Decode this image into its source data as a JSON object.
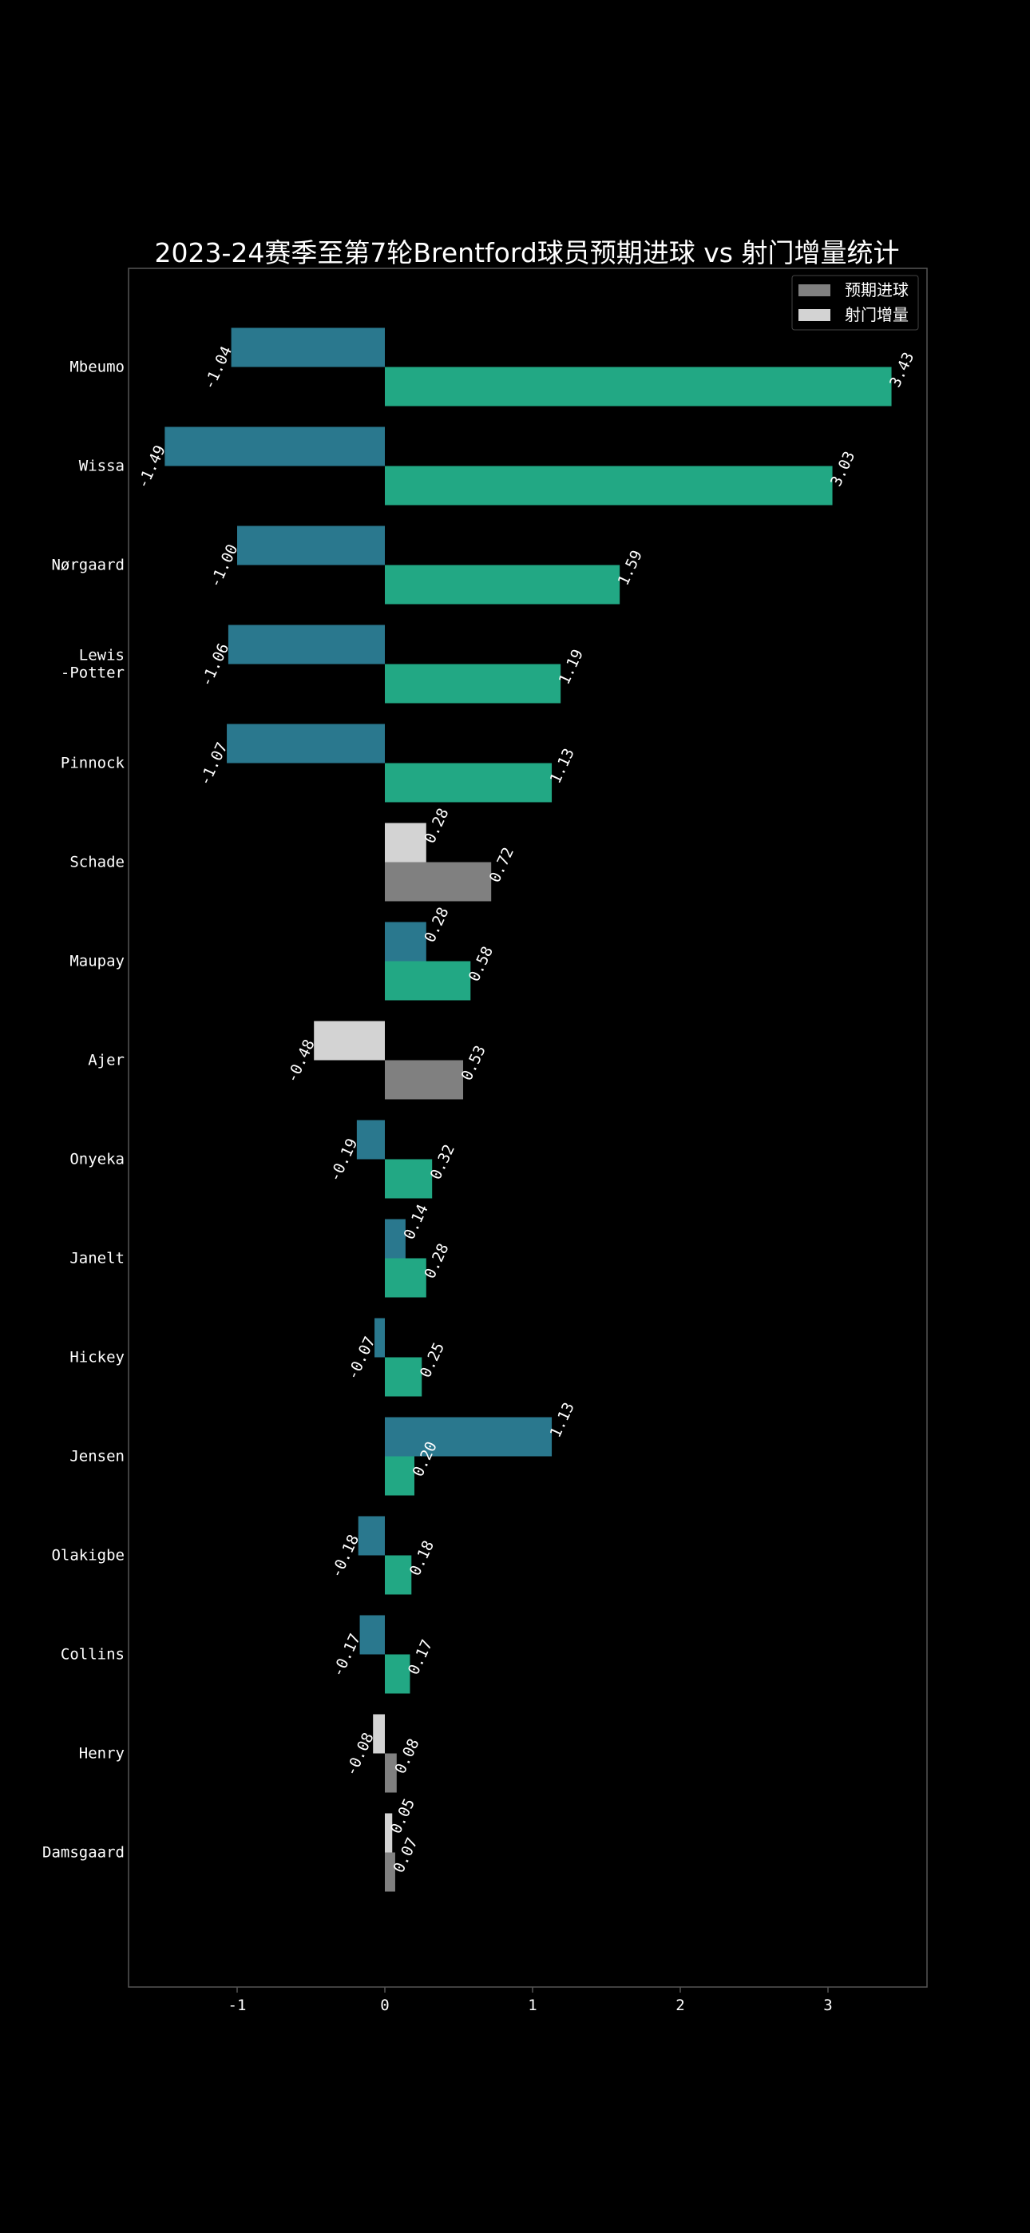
{
  "chart_data": {
    "type": "bar",
    "orientation": "horizontal",
    "title": "2023-24赛季至第7轮Brentford球员预期进球 vs 射门增量统计",
    "xlabel": "",
    "ylabel": "",
    "xlim": [
      -1.7,
      3.7
    ],
    "xticks": [
      -1,
      0,
      1,
      2,
      3
    ],
    "grid": false,
    "legend_position": "top-right",
    "legend": [
      {
        "label": "预期进球",
        "color": "#808080"
      },
      {
        "label": "射门增量",
        "color": "#d3d3d3"
      }
    ],
    "categories": [
      "Mbeumo",
      "Wissa",
      "Nørgaard",
      "Lewis\n-Potter",
      "Pinnock",
      "Schade",
      "Maupay",
      "Ajer",
      "Onyeka",
      "Janelt",
      "Hickey",
      "Jensen",
      "Olakigbe",
      "Collins",
      "Henry",
      "Damsgaard"
    ],
    "series": [
      {
        "name": "射门增量",
        "values": [
          -1.04,
          -1.49,
          -1.0,
          -1.06,
          -1.07,
          0.28,
          0.28,
          -0.48,
          -0.19,
          0.14,
          -0.07,
          1.13,
          -0.18,
          -0.17,
          -0.08,
          0.05
        ],
        "labels": [
          "-1.04",
          "-1.49",
          "-1.00",
          "-1.06",
          "-1.07",
          "0.28",
          "0.28",
          "-0.48",
          "-0.19",
          "0.14",
          "-0.07",
          "1.13",
          "-0.18",
          "-0.17",
          "-0.08",
          "0.05"
        ],
        "colors": [
          "#2a788e",
          "#2a788e",
          "#2a788e",
          "#2a788e",
          "#2a788e",
          "#d3d3d3",
          "#2a788e",
          "#d3d3d3",
          "#2a788e",
          "#2a788e",
          "#2a788e",
          "#2a788e",
          "#2a788e",
          "#2a788e",
          "#d3d3d3",
          "#d3d3d3"
        ]
      },
      {
        "name": "预期进球",
        "values": [
          3.43,
          3.03,
          1.59,
          1.19,
          1.13,
          0.72,
          0.58,
          0.53,
          0.32,
          0.28,
          0.25,
          0.2,
          0.18,
          0.17,
          0.08,
          0.07
        ],
        "labels": [
          "3.43",
          "3.03",
          "1.59",
          "1.19",
          "1.13",
          "0.72",
          "0.58",
          "0.53",
          "0.32",
          "0.28",
          "0.25",
          "0.20",
          "0.18",
          "0.17",
          "0.08",
          "0.07"
        ],
        "colors": [
          "#22a884",
          "#22a884",
          "#22a884",
          "#22a884",
          "#22a884",
          "#808080",
          "#22a884",
          "#808080",
          "#22a884",
          "#22a884",
          "#22a884",
          "#22a884",
          "#22a884",
          "#22a884",
          "#808080",
          "#808080"
        ]
      }
    ]
  },
  "colors": {
    "background": "#000000",
    "frame": "#555555",
    "text": "#ffffff",
    "legend_bg": "#000000",
    "legend_border": "#444444"
  }
}
